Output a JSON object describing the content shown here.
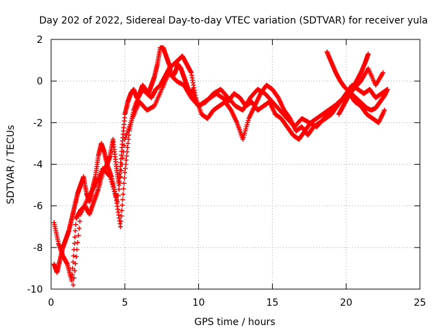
{
  "chart_data": {
    "type": "scatter",
    "title": "Day 202 of 2022, Sidereal Day-to-day VTEC variation (SDTVAR) for receiver yula",
    "xlabel": "GPS time / hours",
    "ylabel": "SDTVAR / TECUs",
    "xlim": [
      0,
      25
    ],
    "ylim": [
      -10,
      2
    ],
    "xticks": [
      "0",
      "5",
      "10",
      "15",
      "20",
      "25"
    ],
    "yticks": [
      "-10",
      "-8",
      "-6",
      "-4",
      "-2",
      "0",
      "2"
    ],
    "grid": true,
    "marker": "+",
    "series": [
      {
        "name": "SDTVAR",
        "color": "#ff0000",
        "traces": [
          {
            "x": [
              0.2,
              0.4,
              0.6,
              0.8,
              1.0,
              1.2,
              1.4,
              1.6,
              1.8,
              2.0,
              2.2,
              2.4,
              2.6,
              2.8,
              3.0,
              3.2,
              3.4,
              3.6,
              3.8,
              4.0,
              4.2,
              4.4,
              4.6,
              4.8,
              5.0,
              5.2,
              5.4,
              5.6,
              5.8,
              6.0,
              6.2,
              6.4,
              6.6,
              6.8,
              7.0,
              7.2,
              7.4,
              7.6,
              7.8,
              8.0,
              8.2,
              8.4,
              8.6,
              8.8,
              9.0,
              9.2,
              9.4,
              9.6,
              9.8,
              10.0,
              10.4,
              10.8,
              11.2,
              11.6,
              12.0,
              12.4,
              12.8,
              13.2,
              13.6,
              14.0,
              14.4,
              14.8,
              15.2,
              15.6,
              16.0,
              16.4,
              16.8,
              17.2,
              17.6,
              18.0,
              18.4,
              18.8,
              19.2,
              19.6,
              20.0,
              20.4,
              20.8,
              21.2,
              21.6,
              22.0,
              22.4,
              22.8
            ],
            "y": [
              -8.8,
              -9.2,
              -8.6,
              -8.0,
              -7.6,
              -7.2,
              -6.6,
              -6.0,
              -5.4,
              -5.0,
              -4.6,
              -5.4,
              -5.8,
              -5.2,
              -4.6,
              -3.6,
              -3.0,
              -3.4,
              -4.0,
              -3.6,
              -2.8,
              -4.0,
              -5.0,
              -3.2,
              -1.6,
              -1.0,
              -0.6,
              -0.4,
              -0.8,
              -0.6,
              -0.2,
              -0.4,
              -0.6,
              -0.2,
              0.2,
              0.8,
              1.6,
              1.6,
              1.2,
              0.8,
              0.2,
              0.4,
              0.8,
              0.6,
              0.2,
              -0.2,
              -0.6,
              -0.4,
              -1.0,
              -1.2,
              -1.0,
              -0.8,
              -0.6,
              -0.8,
              -1.0,
              -0.6,
              -0.8,
              -1.2,
              -1.0,
              -1.4,
              -1.2,
              -1.0,
              -1.6,
              -1.8,
              -2.2,
              -2.6,
              -2.8,
              -2.4,
              -2.0,
              -1.8,
              -1.6,
              -1.4,
              -1.2,
              -1.0,
              -0.6,
              -0.2,
              -0.4,
              -0.6,
              -0.4,
              -0.8,
              -0.6,
              -0.4
            ]
          },
          {
            "x": [
              0.2,
              0.5,
              0.8,
              1.1,
              1.4,
              1.7,
              2.0,
              2.3,
              2.6,
              2.9,
              3.2,
              3.5,
              3.8,
              4.1,
              4.4,
              4.7,
              5.0,
              5.3,
              5.6,
              5.9,
              6.2,
              6.5,
              6.8,
              7.1,
              7.4,
              7.7,
              8.0,
              8.3,
              8.6,
              8.9,
              9.2,
              9.5,
              9.8,
              10.2,
              10.6,
              11.0,
              11.4,
              11.8,
              12.2,
              12.6,
              13.0,
              13.4,
              13.8,
              14.2,
              14.6,
              15.0,
              15.4,
              15.8,
              16.2,
              16.6,
              17.0,
              17.4,
              17.8,
              18.2,
              18.6,
              19.0,
              19.4,
              19.8,
              20.2,
              20.6,
              21.0,
              21.4,
              21.8,
              22.2,
              22.6
            ],
            "y": [
              -6.8,
              -7.8,
              -8.4,
              -8.8,
              -9.6,
              -6.6,
              -6.2,
              -6.0,
              -6.4,
              -5.8,
              -5.2,
              -4.4,
              -4.0,
              -4.6,
              -5.6,
              -7.0,
              -4.4,
              -2.4,
              -1.4,
              -0.8,
              -0.4,
              -0.6,
              -0.8,
              -0.4,
              -0.2,
              0.2,
              0.6,
              0.8,
              1.0,
              1.2,
              0.8,
              0.4,
              -0.8,
              -1.6,
              -1.8,
              -1.4,
              -1.2,
              -1.0,
              -1.4,
              -2.0,
              -2.8,
              -1.8,
              -1.2,
              -0.6,
              -0.2,
              -0.4,
              -0.8,
              -1.4,
              -1.8,
              -2.4,
              -2.2,
              -2.6,
              -2.2,
              -2.0,
              -1.8,
              -1.6,
              -1.2,
              -0.8,
              -0.6,
              -1.0,
              -1.2,
              -1.6,
              -1.8,
              -2.0,
              -1.4
            ]
          },
          {
            "x": [
              1.5,
              2.0,
              2.5,
              3.0,
              3.5,
              4.0,
              4.5,
              5.0,
              5.5,
              6.0,
              6.5,
              7.0,
              7.5,
              8.0,
              8.5,
              9.0,
              9.5,
              10.0,
              10.5,
              11.0,
              11.5,
              12.0,
              12.5,
              13.0,
              13.5,
              14.0,
              14.5,
              15.0,
              15.5,
              16.0,
              16.5,
              17.0,
              17.5,
              18.0,
              18.5,
              19.0,
              19.5,
              20.0,
              20.5,
              21.0,
              21.5,
              22.0,
              22.5
            ],
            "y": [
              -9.8,
              -6.4,
              -5.6,
              -5.0,
              -4.2,
              -4.6,
              -5.8,
              -2.8,
              -1.8,
              -1.0,
              -1.4,
              -1.2,
              -0.4,
              0.4,
              0.0,
              -0.2,
              -0.8,
              -1.2,
              -1.0,
              -0.6,
              -0.4,
              -0.8,
              -1.2,
              -1.4,
              -0.8,
              -0.4,
              -0.6,
              -1.0,
              -1.4,
              -1.8,
              -2.2,
              -1.8,
              -2.0,
              -2.2,
              -1.8,
              -1.4,
              -1.0,
              -0.8,
              -0.4,
              0.0,
              0.6,
              -0.2,
              0.4
            ]
          },
          {
            "x": [
              18.7,
              19.0,
              19.3,
              19.6,
              19.9,
              20.2,
              20.5,
              20.8,
              21.1,
              21.4,
              21.7,
              22.0,
              22.3,
              22.6,
              22.8
            ],
            "y": [
              1.4,
              0.9,
              0.4,
              0.0,
              -0.3,
              -0.5,
              -0.7,
              -0.9,
              -1.1,
              -1.3,
              -1.4,
              -1.3,
              -1.0,
              -0.7,
              -0.4
            ]
          },
          {
            "x": [
              19.5,
              19.8,
              20.1,
              20.4,
              20.7,
              21.0,
              21.3,
              21.5
            ],
            "y": [
              -1.6,
              -1.2,
              -0.8,
              -0.4,
              0.0,
              0.4,
              0.9,
              1.3
            ]
          }
        ]
      }
    ]
  }
}
